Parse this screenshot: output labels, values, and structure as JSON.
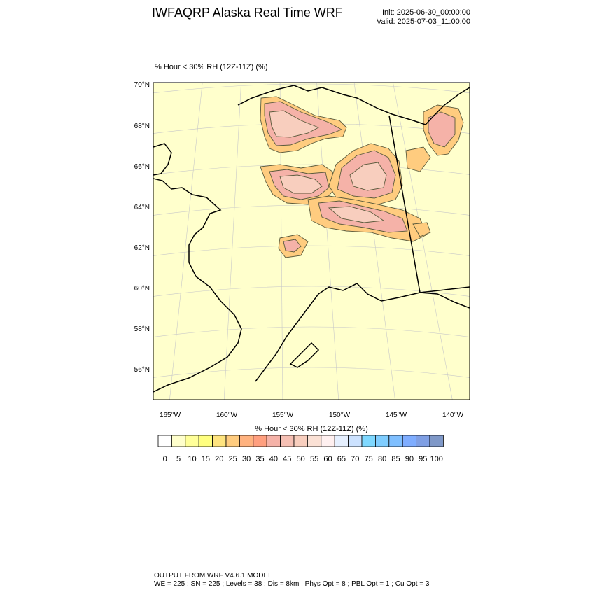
{
  "header": {
    "title": "IWFAQRP Alaska Real Time WRF",
    "init": "Init: 2025-06-30_00:00:00",
    "valid": "Valid: 2025-07-03_11:00:00"
  },
  "map": {
    "field_label": "% Hour < 30% RH (12Z-11Z)   (%)",
    "lat_labels": [
      "70°N",
      "68°N",
      "66°N",
      "64°N",
      "62°N",
      "60°N",
      "58°N",
      "56°N"
    ],
    "lon_labels": [
      "165°W",
      "160°W",
      "155°W",
      "150°W",
      "145°W",
      "140°W"
    ],
    "colors": {
      "background": "#ffffcc",
      "land_line": "#000000",
      "grid": "#c8c8c8",
      "contour": "#5a5a3c"
    }
  },
  "colorbar": {
    "title": "% Hour < 30% RH (12Z-11Z)  (%)",
    "labels": [
      "0",
      "5",
      "10",
      "15",
      "20",
      "25",
      "30",
      "35",
      "40",
      "45",
      "50",
      "55",
      "60",
      "65",
      "70",
      "75",
      "80",
      "85",
      "90",
      "95",
      "100"
    ],
    "colors": [
      "#ffffff",
      "#ffffcc",
      "#ffff99",
      "#ffff7f",
      "#ffe47f",
      "#ffcc7f",
      "#ffb27f",
      "#ff9f7f",
      "#f5b2a8",
      "#f6c0b4",
      "#f8cebe",
      "#fbe1d5",
      "#fff0f0",
      "#e6f0ff",
      "#cce2ff",
      "#7fd8ff",
      "#7fcdff",
      "#7fbfff",
      "#7fadff",
      "#7f9fe4",
      "#7f98c8"
    ]
  },
  "footer": {
    "line1": "OUTPUT FROM WRF V4.6.1 MODEL",
    "line2": "WE = 225 ; SN = 225 ; Levels = 38 ; Dis = 8km ; Phys Opt = 8 ; PBL Opt = 1 ; Cu Opt = 3"
  }
}
